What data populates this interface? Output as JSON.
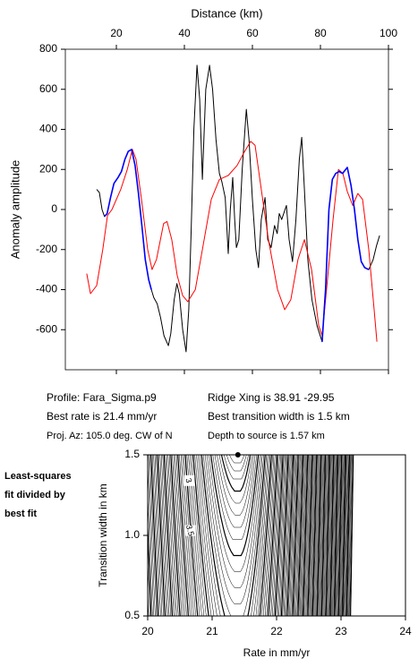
{
  "chart_data": [
    {
      "type": "line",
      "xlabel": "Distance (km)",
      "ylabel": "Anomaly amplitude",
      "xlim": [
        5,
        100
      ],
      "ylim": [
        -800,
        800
      ],
      "xticks": [
        20,
        40,
        60,
        80,
        100
      ],
      "yticks": [
        -600,
        -400,
        -200,
        0,
        200,
        400,
        600,
        800
      ],
      "series": [
        {
          "color": "#000000",
          "x": [
            14.2,
            15,
            15.8,
            16.5,
            17.3,
            18.3,
            19.3,
            20.5,
            21.5,
            22.5,
            23.5,
            24.5,
            25.5,
            26.5,
            27.5,
            28.5,
            29.5,
            30.3,
            31,
            32,
            33,
            34,
            35.3,
            36,
            37,
            37.8,
            38.5,
            39.5,
            40.5,
            41.3,
            42,
            42.8,
            43.7,
            44.5,
            45.3,
            46.3,
            47.4,
            48.3,
            49.3,
            50.3,
            51,
            52,
            52.9,
            53.5,
            54.2,
            54.8,
            55.3,
            56,
            57,
            58.2,
            59,
            60,
            61,
            61.8,
            62.6,
            63.7,
            64.5,
            65.5,
            66.5,
            67.3,
            67.9,
            68.6,
            70,
            70.8,
            71.8,
            72.8,
            73.8,
            74.5,
            75.3,
            76.3,
            77.5,
            79,
            80.5,
            81.5,
            82.5,
            83.5,
            84.5,
            85.5,
            86.5,
            87.9,
            89,
            90,
            91,
            92,
            93,
            94.2,
            95.5,
            96.5,
            97.4
          ],
          "values": [
            100,
            85,
            0,
            -35,
            -20,
            60,
            130,
            160,
            190,
            250,
            290,
            300,
            220,
            80,
            -80,
            -250,
            -350,
            -400,
            -440,
            -470,
            -540,
            -630,
            -680,
            -620,
            -450,
            -370,
            -420,
            -600,
            -710,
            -500,
            -100,
            400,
            720,
            550,
            150,
            600,
            720,
            600,
            350,
            180,
            140,
            60,
            -220,
            0,
            160,
            -50,
            -190,
            -150,
            200,
            500,
            350,
            50,
            -200,
            -290,
            -50,
            60,
            -150,
            -190,
            -80,
            -120,
            -20,
            -50,
            20,
            -150,
            -260,
            -50,
            250,
            360,
            100,
            -250,
            -450,
            -580,
            -660,
            -400,
            0,
            150,
            180,
            190,
            180,
            210,
            120,
            0,
            -150,
            -260,
            -290,
            -300,
            -250,
            -180,
            -130
          ]
        },
        {
          "color": "#ff0000",
          "x": [
            11.3,
            12.4,
            14.2,
            16,
            17.4,
            18.7,
            21.3,
            23.2,
            24.7,
            25.8,
            27.4,
            29.2,
            30.5,
            31.8,
            33.9,
            34.9,
            36.3,
            37.9,
            39.5,
            41,
            43.2,
            45.3,
            47.9,
            50.3,
            52.9,
            55.5,
            57.4,
            59.5,
            60.8,
            62.6,
            64.7,
            67.4,
            69.5,
            71.3,
            73.4,
            75.3,
            77.4,
            79.5,
            80.5,
            81.8,
            83.7,
            85.3,
            86.6,
            87.9,
            89.5,
            91,
            92.4,
            94.2,
            95.8,
            96.6
          ],
          "values": [
            -320,
            -420,
            -380,
            -200,
            -30,
            0,
            100,
            200,
            300,
            250,
            50,
            -200,
            -300,
            -250,
            -70,
            -60,
            -150,
            -330,
            -430,
            -460,
            -400,
            -200,
            50,
            150,
            170,
            220,
            280,
            340,
            320,
            100,
            -150,
            -400,
            -500,
            -450,
            -250,
            -150,
            -300,
            -580,
            -630,
            -400,
            -50,
            200,
            180,
            90,
            20,
            80,
            50,
            -200,
            -500,
            -660
          ]
        },
        {
          "color": "#0000ff",
          "x": [
            16.5,
            17.3,
            18.3,
            19.3,
            20.5,
            21.5,
            22.5,
            23.5,
            24.5,
            25.5,
            26.5,
            27.5,
            28.5,
            29.5,
            30.3,
            55,
            80.5,
            81.5,
            82.5,
            83.5,
            84.5,
            85.5,
            86.5,
            87.9,
            89,
            90,
            91,
            92,
            93,
            94.2
          ],
          "values": [
            -35,
            -20,
            60,
            130,
            160,
            190,
            250,
            290,
            300,
            220,
            80,
            -80,
            -250,
            -350,
            -400,
            null,
            -660,
            -400,
            0,
            150,
            180,
            190,
            180,
            210,
            120,
            0,
            -150,
            -260,
            -290,
            -300
          ]
        }
      ]
    },
    {
      "type": "contour",
      "xlabel": "Rate in mm/yr",
      "ylabel": "Transition width in km",
      "xlim": [
        20,
        24
      ],
      "ylim": [
        0.5,
        1.5
      ],
      "xticks": [
        20,
        21,
        22,
        23,
        24
      ],
      "yticks": [
        0.5,
        {
          "value": 1,
          "label": "1.0"
        },
        1.5
      ],
      "best_fit": {
        "x": 21.4,
        "y": 1.5
      },
      "contour_labels": [
        {
          "value": 3,
          "x": 20.63,
          "y": 1.34
        },
        {
          "value": 3.5,
          "x": 20.65,
          "y": 1.03
        }
      ],
      "note": [
        "Least-squares",
        "fit divided by",
        "best fit"
      ]
    }
  ],
  "info": {
    "left": [
      "Profile: Fara_Sigma.p9",
      "Best rate is 21.4 mm/yr",
      "Proj. Az: 105.0 deg. CW of N"
    ],
    "right": [
      "Ridge Xing is 38.91 -29.95",
      "Best transition width is 1.5 km",
      "Depth to source is    1.57 km"
    ]
  }
}
